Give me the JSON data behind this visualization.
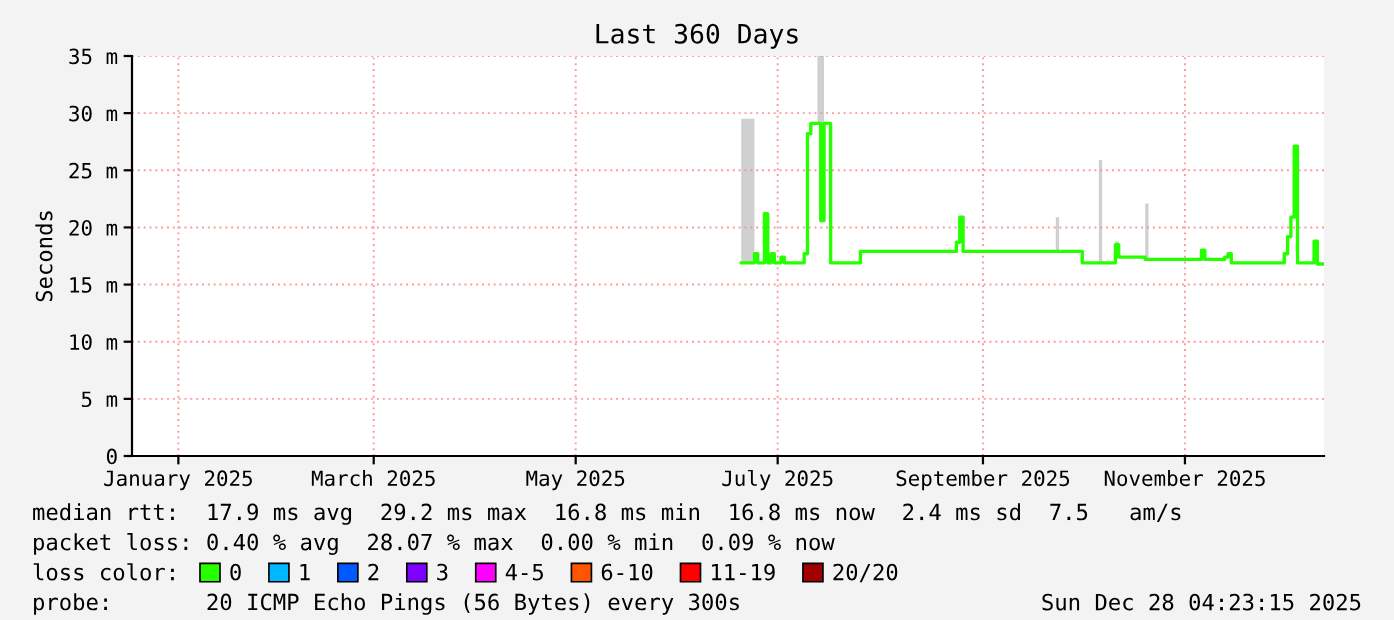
{
  "chart_data": {
    "type": "line",
    "title": "Last 360 Days",
    "ylabel": "Seconds",
    "legend_title": "loss color:",
    "legend": "bottom",
    "grid": true,
    "marker": "none",
    "line_style": "solid",
    "xlim": [
      "2025-01-02",
      "2025-12-28"
    ],
    "xticks": [
      {
        "value": "2025-01-16",
        "label": "January 2025"
      },
      {
        "value": "2025-03-16",
        "label": "March 2025"
      },
      {
        "value": "2025-05-16",
        "label": "May 2025"
      },
      {
        "value": "2025-07-16",
        "label": "July 2025"
      },
      {
        "value": "2025-09-16",
        "label": "September 2025"
      },
      {
        "value": "2025-11-16",
        "label": "November 2025"
      }
    ],
    "ylim": [
      0,
      35
    ],
    "yticks": [
      0,
      {
        "value": 5,
        "label": "5 m"
      },
      {
        "value": 10,
        "label": "10 m"
      },
      {
        "value": 15,
        "label": "15 m"
      },
      {
        "value": 20,
        "label": "20 m"
      },
      {
        "value": 25,
        "label": "25 m"
      },
      {
        "value": 30,
        "label": "30 m"
      },
      {
        "value": 35,
        "label": "35 m"
      }
    ],
    "series": [
      {
        "color": "#26ff00",
        "x": [
          "2025-07-05",
          "2025-07-08",
          "2025-07-09",
          "2025-07-10",
          "2025-07-11",
          "2025-07-12",
          "2025-07-13",
          "2025-07-14",
          "2025-07-15",
          "2025-07-17",
          "2025-07-18",
          "2025-07-23",
          "2025-07-24",
          "2025-07-25",
          "2025-07-26",
          "2025-07-28",
          "2025-07-29",
          "2025-07-30",
          "2025-07-31",
          "2025-08-01",
          "2025-08-09",
          "2025-08-10",
          "2025-09-07",
          "2025-09-08",
          "2025-09-09",
          "2025-09-10",
          "2025-10-08",
          "2025-10-09",
          "2025-10-15",
          "2025-10-16",
          "2025-10-21",
          "2025-10-22",
          "2025-10-25",
          "2025-10-26",
          "2025-10-27",
          "2025-11-04",
          "2025-11-05",
          "2025-11-20",
          "2025-11-21",
          "2025-11-22",
          "2025-11-28",
          "2025-11-29",
          "2025-11-30",
          "2025-12-15",
          "2025-12-16",
          "2025-12-17",
          "2025-12-18",
          "2025-12-19",
          "2025-12-20",
          "2025-12-24",
          "2025-12-25",
          "2025-12-26",
          "2025-12-28"
        ],
        "values": [
          16.9,
          16.9,
          17.7,
          16.9,
          16.9,
          21.2,
          16.9,
          17.7,
          16.9,
          17.4,
          16.9,
          16.9,
          17.7,
          28.2,
          29.1,
          29.1,
          20.6,
          29.1,
          29.1,
          16.9,
          16.9,
          17.9,
          17.9,
          18.7,
          20.9,
          17.9,
          17.9,
          17.9,
          17.9,
          16.9,
          16.9,
          16.9,
          16.9,
          18.5,
          17.4,
          17.2,
          17.2,
          17.2,
          18.0,
          17.2,
          17.4,
          17.7,
          16.9,
          16.9,
          17.7,
          19.2,
          20.9,
          27.1,
          16.9,
          16.9,
          18.8,
          16.8,
          16.8
        ],
        "lower": [
          16.9,
          16.9,
          17.7,
          16.9,
          16.9,
          21.2,
          16.9,
          17.7,
          16.9,
          17.4,
          16.9,
          16.9,
          17.7,
          28.2,
          29.1,
          29.1,
          20.6,
          29.1,
          29.1,
          16.9,
          16.9,
          17.9,
          17.9,
          18.7,
          20.9,
          17.9,
          17.9,
          17.9,
          17.9,
          16.9,
          16.9,
          16.9,
          16.9,
          18.5,
          17.4,
          17.2,
          17.2,
          17.2,
          18.0,
          17.2,
          17.4,
          17.7,
          16.9,
          16.9,
          17.7,
          19.2,
          20.9,
          27.1,
          16.9,
          16.9,
          18.8,
          16.8,
          16.8
        ],
        "upper": [
          29.5,
          29.5,
          17.7,
          16.9,
          16.9,
          21.2,
          16.9,
          17.7,
          16.9,
          17.4,
          16.9,
          16.9,
          17.7,
          28.2,
          29.1,
          35,
          35,
          29.1,
          29.1,
          16.9,
          16.9,
          17.9,
          17.9,
          18.7,
          20.9,
          17.9,
          20.9,
          17.9,
          17.9,
          16.9,
          25.9,
          16.9,
          16.9,
          18.8,
          17.4,
          22.1,
          17.2,
          17.2,
          18.0,
          17.2,
          17.4,
          17.7,
          16.9,
          16.9,
          17.7,
          19.2,
          20.9,
          27.1,
          16.9,
          16.9,
          18.8,
          16.8,
          16.8
        ]
      },
      {
        "name": "0",
        "color": "#26ff00"
      },
      {
        "name": "1",
        "color": "#00b8ff"
      },
      {
        "name": "2",
        "color": "#0059ff"
      },
      {
        "name": "3",
        "color": "#7e00ff"
      },
      {
        "name": "4-5",
        "color": "#ff00ff"
      },
      {
        "name": "6-10",
        "color": "#ff5500"
      },
      {
        "name": "11-19",
        "color": "#ff0000"
      },
      {
        "name": "20/20",
        "color": "#a10000"
      }
    ],
    "annotations": [
      "median rtt:  17.9 ms avg  29.2 ms max  16.8 ms min  16.8 ms now  2.4 ms sd  7.5   am/s",
      "packet loss: 0.40 % avg  28.07 % max  0.00 % min  0.09 % now",
      "probe:       20 ICMP Echo Pings (56 Bytes) every 300s",
      "Sun Dec 28 04:23:15 2025"
    ]
  }
}
